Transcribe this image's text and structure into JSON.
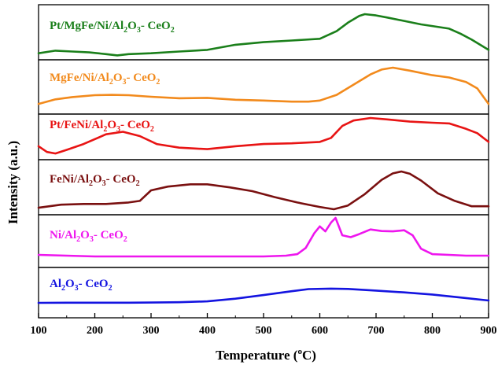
{
  "chart_data": {
    "type": "line",
    "xlabel": "Temperature (",
    "xlabel_sup": "o",
    "xlabel_unit": "C)",
    "ylabel": "Intensity (a.u.)",
    "xlim": [
      100,
      900
    ],
    "xticks": [
      "100",
      "200",
      "300",
      "400",
      "500",
      "600",
      "700",
      "800",
      "900"
    ],
    "layout": "stacked-panels",
    "series": [
      {
        "label_parts": [
          "Pt/MgFe/Ni/Al",
          "2",
          "O",
          "3",
          "- CeO",
          "2"
        ],
        "color": "#1a7f1a",
        "x": [
          100,
          130,
          160,
          190,
          220,
          240,
          260,
          300,
          350,
          400,
          450,
          500,
          550,
          600,
          630,
          650,
          670,
          680,
          700,
          720,
          750,
          780,
          800,
          830,
          850,
          870,
          900
        ],
        "y": [
          0.08,
          0.14,
          0.12,
          0.1,
          0.06,
          0.03,
          0.06,
          0.08,
          0.12,
          0.16,
          0.28,
          0.34,
          0.38,
          0.42,
          0.6,
          0.8,
          0.96,
          1.0,
          0.97,
          0.92,
          0.84,
          0.76,
          0.72,
          0.66,
          0.54,
          0.4,
          0.16
        ]
      },
      {
        "label_parts": [
          "MgFe/Ni/Al",
          "2",
          "O",
          "3",
          "- CeO",
          "2"
        ],
        "color": "#f28a1c",
        "x": [
          100,
          130,
          160,
          200,
          230,
          260,
          300,
          350,
          400,
          450,
          500,
          550,
          580,
          600,
          630,
          660,
          690,
          710,
          730,
          760,
          800,
          830,
          860,
          880,
          900
        ],
        "y": [
          0.04,
          0.16,
          0.22,
          0.27,
          0.28,
          0.27,
          0.23,
          0.19,
          0.2,
          0.15,
          0.13,
          0.1,
          0.1,
          0.13,
          0.28,
          0.55,
          0.82,
          0.95,
          1.0,
          0.92,
          0.8,
          0.74,
          0.62,
          0.45,
          0.04
        ]
      },
      {
        "label_parts": [
          "Pt/FeNi/Al",
          "2",
          "O",
          "3",
          "- CeO",
          "2"
        ],
        "color": "#e81414",
        "x": [
          100,
          115,
          130,
          150,
          180,
          220,
          250,
          280,
          310,
          350,
          400,
          450,
          500,
          550,
          600,
          620,
          640,
          660,
          690,
          720,
          760,
          800,
          830,
          860,
          880,
          900
        ],
        "y": [
          0.22,
          0.06,
          0.02,
          0.12,
          0.28,
          0.55,
          0.62,
          0.5,
          0.28,
          0.18,
          0.14,
          0.22,
          0.28,
          0.3,
          0.34,
          0.45,
          0.78,
          0.93,
          1.0,
          0.96,
          0.9,
          0.87,
          0.85,
          0.7,
          0.58,
          0.34
        ]
      },
      {
        "label_parts": [
          "FeNi/Al",
          "2",
          "O",
          "3",
          "- CeO",
          "2"
        ],
        "color": "#7a1010",
        "x": [
          100,
          140,
          180,
          220,
          260,
          280,
          300,
          330,
          370,
          400,
          440,
          480,
          520,
          560,
          600,
          625,
          650,
          680,
          710,
          730,
          745,
          760,
          780,
          810,
          840,
          870,
          900
        ],
        "y": [
          0.04,
          0.12,
          0.14,
          0.14,
          0.18,
          0.22,
          0.5,
          0.6,
          0.66,
          0.66,
          0.58,
          0.48,
          0.32,
          0.18,
          0.06,
          0.0,
          0.1,
          0.4,
          0.78,
          0.95,
          1.0,
          0.94,
          0.76,
          0.42,
          0.22,
          0.08,
          0.08
        ]
      },
      {
        "label_parts": [
          "Ni/Al",
          "2",
          "O",
          "3",
          "- CeO",
          "2"
        ],
        "color": "#ee16ee",
        "x": [
          100,
          150,
          200,
          300,
          400,
          500,
          540,
          560,
          575,
          590,
          600,
          610,
          620,
          628,
          640,
          655,
          670,
          690,
          710,
          730,
          750,
          765,
          780,
          800,
          830,
          860,
          900
        ],
        "y": [
          0.04,
          0.02,
          0.0,
          0.0,
          0.0,
          0.0,
          0.02,
          0.06,
          0.22,
          0.6,
          0.78,
          0.65,
          0.88,
          1.0,
          0.55,
          0.5,
          0.58,
          0.7,
          0.66,
          0.65,
          0.68,
          0.55,
          0.2,
          0.06,
          0.04,
          0.02,
          0.02
        ]
      },
      {
        "label_parts": [
          "Al",
          "2",
          "O",
          "3",
          "- CeO",
          "2"
        ],
        "color": "#1414e0",
        "x": [
          100,
          150,
          200,
          260,
          300,
          350,
          400,
          450,
          500,
          550,
          580,
          620,
          650,
          700,
          750,
          800,
          850,
          900
        ],
        "y": [
          0.0,
          0.01,
          0.01,
          0.01,
          0.02,
          0.04,
          0.1,
          0.28,
          0.52,
          0.78,
          0.92,
          0.95,
          0.93,
          0.82,
          0.7,
          0.56,
          0.36,
          0.16
        ]
      }
    ]
  }
}
